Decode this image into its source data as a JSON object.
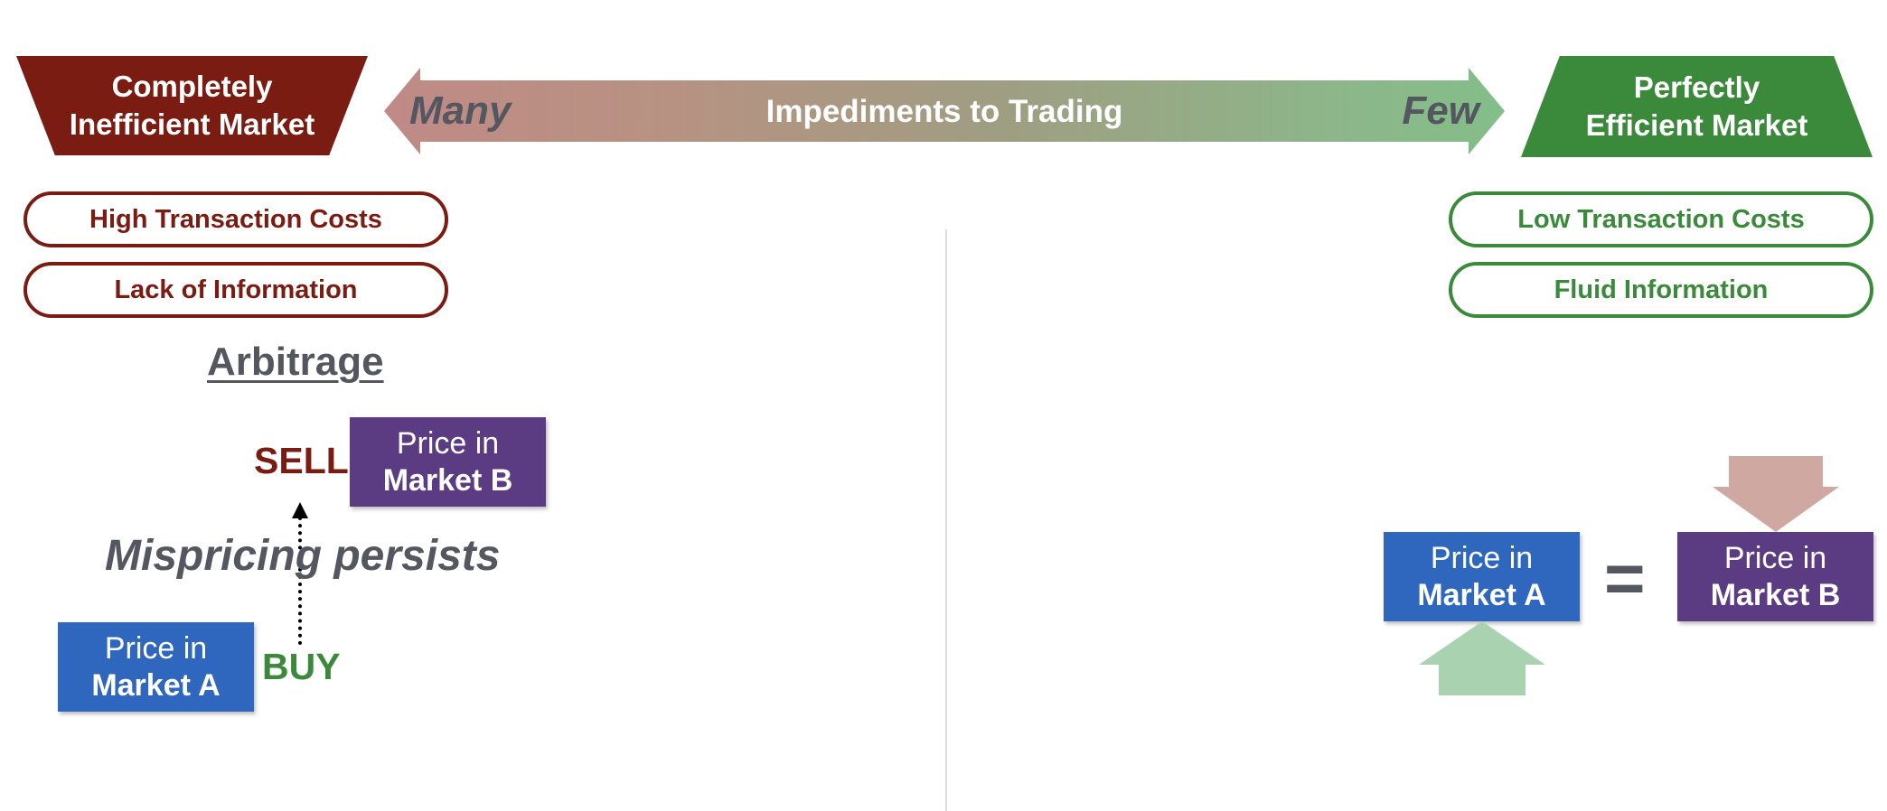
{
  "header": {
    "left_market_line1": "Completely",
    "left_market_line2": "Inefficient Market",
    "right_market_line1": "Perfectly",
    "right_market_line2": "Efficient Market",
    "arrow_left_label": "Many",
    "arrow_title": "Impediments to Trading",
    "arrow_right_label": "Few"
  },
  "left_panel": {
    "pill1": "High Transaction Costs",
    "pill2": "Lack of Information",
    "arbitrage_title": "Arbitrage",
    "sell_label": "SELL",
    "buy_label": "BUY",
    "mispricing_text": "Mispricing persists",
    "market_b_line1": "Price in",
    "market_b_line2": "Market B",
    "market_a_line1": "Price in",
    "market_a_line2": "Market A"
  },
  "right_panel": {
    "pill1": "Low Transaction Costs",
    "pill2": "Fluid Information",
    "market_a_line1": "Price in",
    "market_a_line2": "Market A",
    "equals_sign": "=",
    "market_b_line1": "Price in",
    "market_b_line2": "Market B"
  },
  "colors": {
    "inefficient_red": "#7b1c12",
    "efficient_green": "#3b8a3b",
    "market_a_blue": "#2f67bf",
    "market_b_purple": "#5b3b82",
    "text_gray": "#545760",
    "down_arrow": "#cfa8a1",
    "up_arrow": "#a8d2b0"
  }
}
